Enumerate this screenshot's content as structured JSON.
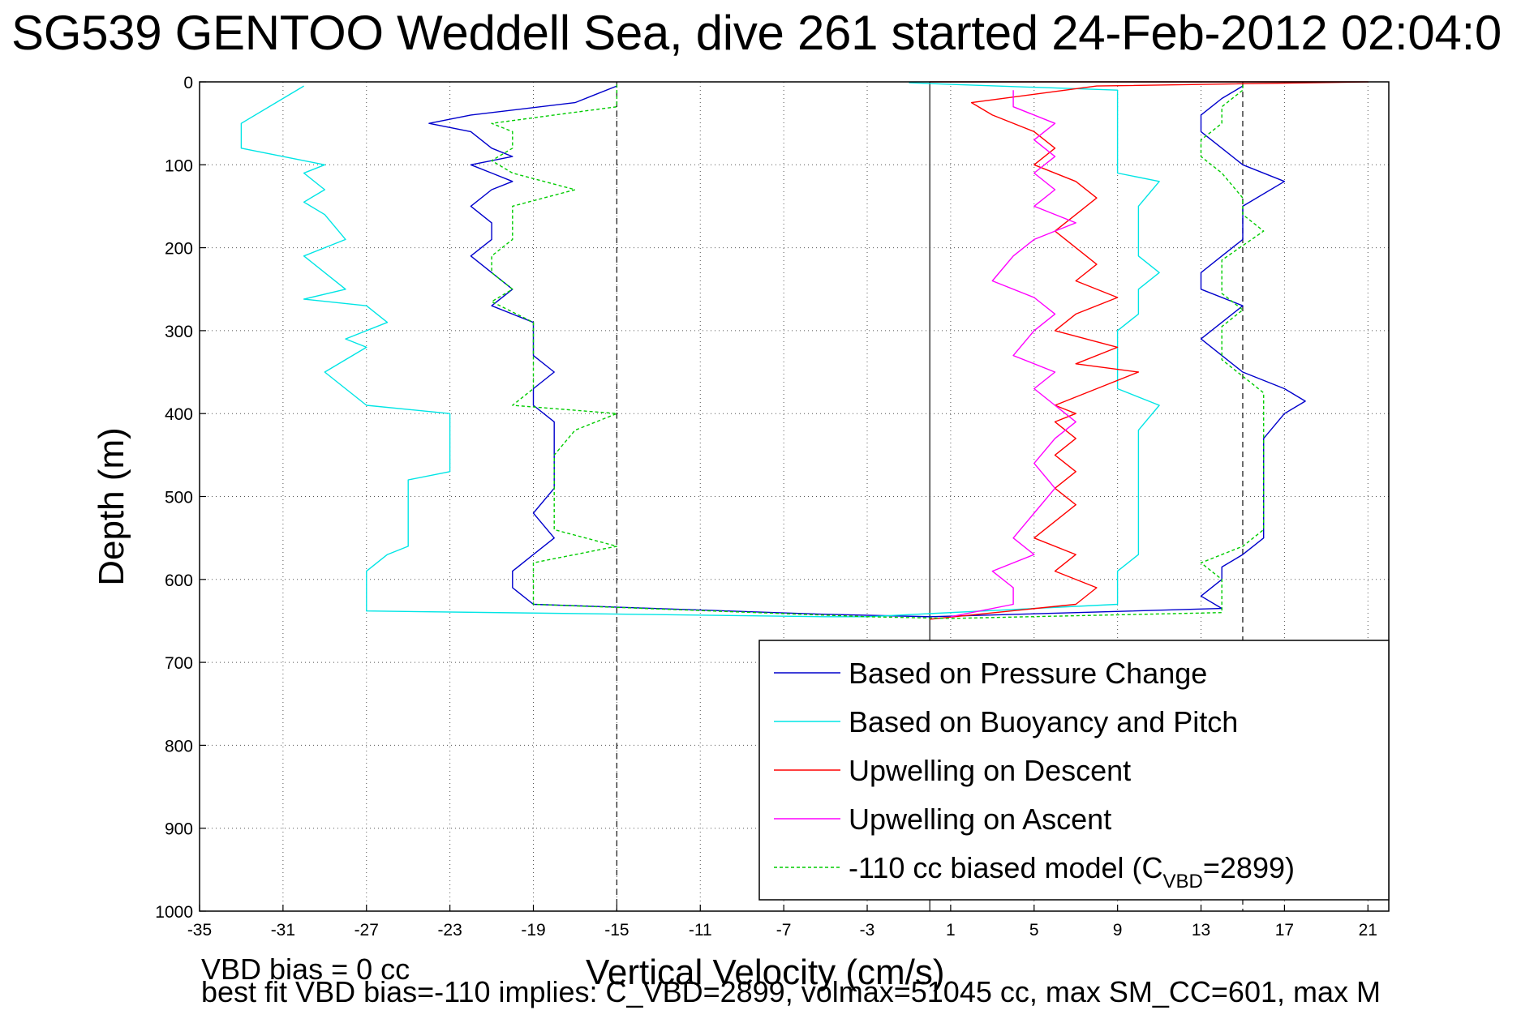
{
  "chart_data": {
    "type": "line",
    "title": "SG539 GENTOO Weddell Sea, dive 261 started 24-Feb-2012 02:04:0",
    "xlabel": "Vertical Velocity (cm/s)",
    "ylabel": "Depth (m)",
    "xlim": [
      -35,
      22
    ],
    "ylim": [
      0,
      1000
    ],
    "y_reversed": true,
    "grid": true,
    "x_ticks": [
      "-35",
      "-31",
      "-27",
      "-23",
      "-19",
      "-15",
      "-11",
      "-7",
      "-3",
      "1",
      "5",
      "9",
      "13",
      "17",
      "21"
    ],
    "y_ticks": [
      "0",
      "100",
      "200",
      "300",
      "400",
      "500",
      "600",
      "700",
      "800",
      "900",
      "1000"
    ],
    "reference_lines": [
      {
        "x": -15,
        "style": "dashed"
      },
      {
        "x": 0,
        "style": "solid"
      },
      {
        "x": 15,
        "style": "dashed"
      }
    ],
    "legend_location": "bottom-right",
    "legend": [
      {
        "label": "Based on Pressure Change",
        "color": "#0000cc",
        "style": "solid"
      },
      {
        "label": "Based on Buoyancy and Pitch",
        "color": "#00e5e5",
        "style": "solid"
      },
      {
        "label": "Upwelling on Descent",
        "color": "#ff0000",
        "style": "solid"
      },
      {
        "label": "Upwelling on Ascent",
        "color": "#ff00ff",
        "style": "solid"
      },
      {
        "label_pre": "-110 cc biased model (C",
        "label_sub": "VBD",
        "label_post": "=2899)",
        "color": "#00cc00",
        "style": "dashed"
      }
    ],
    "series": [
      {
        "name": "Based on Pressure Change",
        "color": "#0000cc",
        "points": [
          [
            -15,
            5
          ],
          [
            -16,
            15
          ],
          [
            -17,
            25
          ],
          [
            -22,
            40
          ],
          [
            -24,
            50
          ],
          [
            -22,
            60
          ],
          [
            -21,
            80
          ],
          [
            -20,
            90
          ],
          [
            -22,
            100
          ],
          [
            -21,
            110
          ],
          [
            -20,
            120
          ],
          [
            -21,
            130
          ],
          [
            -22,
            150
          ],
          [
            -21,
            170
          ],
          [
            -21,
            190
          ],
          [
            -22,
            210
          ],
          [
            -21,
            230
          ],
          [
            -20,
            250
          ],
          [
            -21,
            270
          ],
          [
            -19,
            290
          ],
          [
            -19,
            310
          ],
          [
            -19,
            330
          ],
          [
            -18,
            350
          ],
          [
            -19,
            370
          ],
          [
            -19,
            390
          ],
          [
            -18,
            410
          ],
          [
            -18,
            430
          ],
          [
            -18,
            460
          ],
          [
            -18,
            490
          ],
          [
            -19,
            520
          ],
          [
            -18,
            550
          ],
          [
            -19,
            570
          ],
          [
            -20,
            590
          ],
          [
            -20,
            610
          ],
          [
            -19,
            630
          ],
          [
            -5,
            642
          ],
          [
            0,
            645
          ],
          [
            14,
            635
          ],
          [
            13,
            620
          ],
          [
            14,
            600
          ],
          [
            14,
            585
          ],
          [
            15,
            570
          ],
          [
            16,
            550
          ],
          [
            16,
            520
          ],
          [
            16,
            490
          ],
          [
            16,
            460
          ],
          [
            16,
            430
          ],
          [
            17,
            400
          ],
          [
            18,
            385
          ],
          [
            17,
            370
          ],
          [
            15,
            350
          ],
          [
            14,
            330
          ],
          [
            13,
            310
          ],
          [
            14,
            290
          ],
          [
            15,
            270
          ],
          [
            13,
            250
          ],
          [
            13,
            230
          ],
          [
            14,
            210
          ],
          [
            15,
            190
          ],
          [
            15,
            170
          ],
          [
            15,
            150
          ],
          [
            17,
            120
          ],
          [
            15,
            100
          ],
          [
            14,
            80
          ],
          [
            13,
            60
          ],
          [
            13,
            40
          ],
          [
            14,
            20
          ],
          [
            15,
            5
          ]
        ]
      },
      {
        "name": "Based on Buoyancy and Pitch",
        "color": "#00e5e5",
        "points": [
          [
            -30,
            5
          ],
          [
            -33,
            50
          ],
          [
            -33,
            80
          ],
          [
            -30,
            95
          ],
          [
            -29,
            100
          ],
          [
            -30,
            110
          ],
          [
            -29,
            130
          ],
          [
            -30,
            145
          ],
          [
            -29,
            160
          ],
          [
            -28,
            190
          ],
          [
            -30,
            210
          ],
          [
            -29,
            230
          ],
          [
            -28,
            250
          ],
          [
            -30,
            262
          ],
          [
            -27,
            270
          ],
          [
            -26,
            290
          ],
          [
            -28,
            310
          ],
          [
            -27,
            320
          ],
          [
            -29,
            350
          ],
          [
            -28,
            370
          ],
          [
            -27,
            390
          ],
          [
            -23,
            400
          ],
          [
            -23,
            430
          ],
          [
            -23,
            470
          ],
          [
            -25,
            480
          ],
          [
            -25,
            520
          ],
          [
            -25,
            560
          ],
          [
            -26,
            570
          ],
          [
            -27,
            590
          ],
          [
            -27,
            610
          ],
          [
            -27,
            638
          ],
          [
            -5,
            645
          ],
          [
            -3,
            645
          ],
          [
            9,
            630
          ],
          [
            9,
            610
          ],
          [
            9,
            590
          ],
          [
            10,
            570
          ],
          [
            10,
            540
          ],
          [
            10,
            500
          ],
          [
            10,
            460
          ],
          [
            10,
            420
          ],
          [
            11,
            390
          ],
          [
            9,
            370
          ],
          [
            9,
            350
          ],
          [
            9,
            320
          ],
          [
            9,
            300
          ],
          [
            10,
            280
          ],
          [
            10,
            250
          ],
          [
            11,
            230
          ],
          [
            10,
            210
          ],
          [
            10,
            180
          ],
          [
            10,
            150
          ],
          [
            11,
            120
          ],
          [
            9,
            110
          ],
          [
            9,
            90
          ],
          [
            9,
            60
          ],
          [
            9,
            40
          ],
          [
            9,
            10
          ],
          [
            1,
            3
          ],
          [
            -1,
            1
          ]
        ]
      },
      {
        "name": "Upwelling on Descent",
        "color": "#ff0000",
        "points": [
          [
            0,
            0
          ],
          [
            21,
            0
          ],
          [
            8,
            5
          ],
          [
            5,
            15
          ],
          [
            2,
            25
          ],
          [
            3,
            40
          ],
          [
            5,
            60
          ],
          [
            6,
            80
          ],
          [
            5,
            100
          ],
          [
            7,
            120
          ],
          [
            8,
            140
          ],
          [
            7,
            160
          ],
          [
            6,
            180
          ],
          [
            7,
            200
          ],
          [
            8,
            220
          ],
          [
            7,
            240
          ],
          [
            9,
            260
          ],
          [
            7,
            280
          ],
          [
            6,
            300
          ],
          [
            9,
            320
          ],
          [
            7,
            340
          ],
          [
            10,
            350
          ],
          [
            8,
            370
          ],
          [
            6,
            390
          ],
          [
            7,
            400
          ],
          [
            6,
            410
          ],
          [
            7,
            430
          ],
          [
            6,
            450
          ],
          [
            7,
            470
          ],
          [
            6,
            490
          ],
          [
            7,
            510
          ],
          [
            6,
            530
          ],
          [
            5,
            550
          ],
          [
            7,
            570
          ],
          [
            6,
            590
          ],
          [
            8,
            610
          ],
          [
            7,
            630
          ],
          [
            0,
            648
          ]
        ]
      },
      {
        "name": "Upwelling on Ascent",
        "color": "#ff00ff",
        "points": [
          [
            4,
            10
          ],
          [
            4,
            30
          ],
          [
            6,
            50
          ],
          [
            5,
            70
          ],
          [
            6,
            90
          ],
          [
            5,
            110
          ],
          [
            6,
            130
          ],
          [
            5,
            150
          ],
          [
            7,
            170
          ],
          [
            5,
            190
          ],
          [
            4,
            210
          ],
          [
            3,
            240
          ],
          [
            5,
            260
          ],
          [
            6,
            280
          ],
          [
            5,
            300
          ],
          [
            4,
            330
          ],
          [
            6,
            350
          ],
          [
            5,
            370
          ],
          [
            6,
            390
          ],
          [
            7,
            410
          ],
          [
            6,
            430
          ],
          [
            5,
            460
          ],
          [
            6,
            490
          ],
          [
            5,
            520
          ],
          [
            4,
            550
          ],
          [
            5,
            570
          ],
          [
            3,
            590
          ],
          [
            4,
            610
          ],
          [
            4,
            630
          ],
          [
            1,
            645
          ]
        ]
      },
      {
        "name": "-110 cc biased model (CVBD=2899)",
        "color": "#00cc00",
        "dashed": true,
        "points": [
          [
            -15,
            3
          ],
          [
            -15,
            15
          ],
          [
            -15,
            30
          ],
          [
            -18,
            40
          ],
          [
            -21,
            50
          ],
          [
            -20,
            60
          ],
          [
            -20,
            80
          ],
          [
            -21,
            95
          ],
          [
            -20,
            110
          ],
          [
            -17,
            130
          ],
          [
            -20,
            150
          ],
          [
            -20,
            170
          ],
          [
            -20,
            190
          ],
          [
            -21,
            210
          ],
          [
            -21,
            230
          ],
          [
            -20,
            250
          ],
          [
            -21,
            265
          ],
          [
            -19,
            290
          ],
          [
            -19,
            310
          ],
          [
            -19,
            330
          ],
          [
            -19,
            350
          ],
          [
            -19,
            370
          ],
          [
            -20,
            390
          ],
          [
            -15,
            400
          ],
          [
            -17,
            420
          ],
          [
            -18,
            450
          ],
          [
            -18,
            480
          ],
          [
            -18,
            510
          ],
          [
            -18,
            540
          ],
          [
            -15,
            560
          ],
          [
            -19,
            580
          ],
          [
            -19,
            600
          ],
          [
            -19,
            630
          ],
          [
            -3,
            645
          ],
          [
            1,
            647
          ],
          [
            14,
            640
          ],
          [
            14,
            620
          ],
          [
            14,
            600
          ],
          [
            13,
            580
          ],
          [
            15,
            560
          ],
          [
            16,
            540
          ],
          [
            16,
            510
          ],
          [
            16,
            480
          ],
          [
            16,
            450
          ],
          [
            16,
            420
          ],
          [
            16,
            395
          ],
          [
            16,
            375
          ],
          [
            15,
            355
          ],
          [
            14,
            335
          ],
          [
            14,
            315
          ],
          [
            14,
            295
          ],
          [
            15,
            275
          ],
          [
            14,
            255
          ],
          [
            14,
            235
          ],
          [
            14,
            215
          ],
          [
            16,
            180
          ],
          [
            15,
            160
          ],
          [
            15,
            140
          ],
          [
            14,
            110
          ],
          [
            13,
            90
          ],
          [
            13,
            70
          ],
          [
            14,
            50
          ],
          [
            14,
            30
          ],
          [
            15,
            10
          ],
          [
            15,
            3
          ]
        ]
      }
    ]
  },
  "footer": {
    "bias_text": "VBD bias = 0 cc",
    "fit_text": "best fit VBD bias=-110 implies: C_VBD=2899, volmax=51045 cc, max SM_CC=601, max M"
  }
}
